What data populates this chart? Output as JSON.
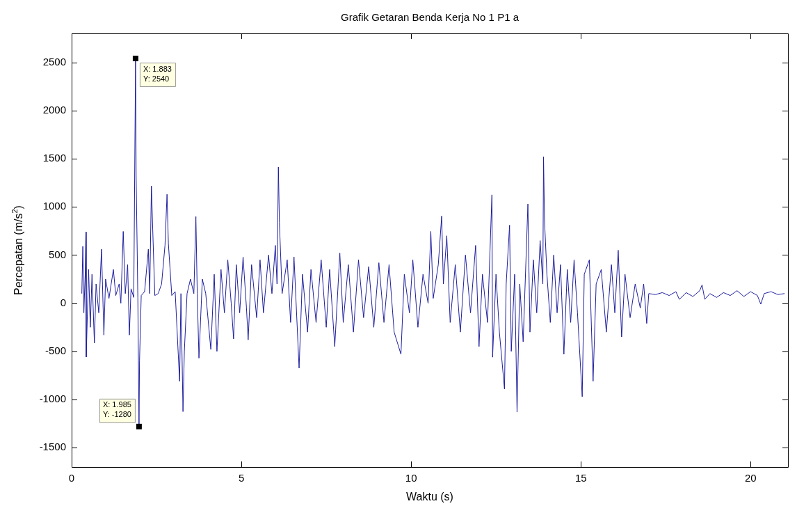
{
  "chart_data": {
    "type": "line",
    "title": "Grafik Getaran Benda Kerja No 1 P1 a",
    "xlabel": "Waktu (s)",
    "ylabel": "Percepatan (m/s$^{2}$)",
    "xlim": [
      0,
      21.1
    ],
    "xticks": [
      0,
      5,
      10,
      15,
      20
    ],
    "ylim": [
      -1700,
      2800
    ],
    "yticks": [
      -1500,
      -1000,
      -500,
      0,
      500,
      1000,
      1500,
      2000,
      2500
    ],
    "grid": false,
    "legend": false,
    "marker": "none",
    "line_style": "solid",
    "annotations": [
      {
        "text": "X: 1.883\nY: 2540",
        "x": 1.883,
        "y": 2540
      },
      {
        "text": "X: 1.985\nY: -1280",
        "x": 1.985,
        "y": -1280
      }
    ],
    "series": [
      {
        "color": "#1f1fa0",
        "x": [
          0.3,
          0.33,
          0.36,
          0.4,
          0.42,
          0.43,
          0.5,
          0.55,
          0.6,
          0.67,
          0.72,
          0.8,
          0.88,
          0.95,
          1.0,
          1.1,
          1.23,
          1.3,
          1.4,
          1.45,
          1.52,
          1.58,
          1.65,
          1.7,
          1.75,
          1.83,
          1.883,
          1.9,
          1.95,
          1.985,
          2.0,
          2.05,
          2.15,
          2.26,
          2.3,
          2.35,
          2.4,
          2.45,
          2.55,
          2.65,
          2.75,
          2.81,
          2.85,
          2.95,
          3.05,
          3.18,
          3.22,
          3.28,
          3.32,
          3.4,
          3.5,
          3.6,
          3.66,
          3.7,
          3.75,
          3.85,
          3.95,
          4.1,
          4.2,
          4.28,
          4.4,
          4.5,
          4.6,
          4.7,
          4.77,
          4.85,
          4.95,
          5.05,
          5.15,
          5.2,
          5.3,
          5.45,
          5.55,
          5.65,
          5.8,
          5.9,
          6.0,
          6.05,
          6.09,
          6.12,
          6.2,
          6.35,
          6.45,
          6.55,
          6.7,
          6.8,
          6.95,
          7.05,
          7.2,
          7.35,
          7.5,
          7.6,
          7.75,
          7.9,
          8.0,
          8.15,
          8.3,
          8.45,
          8.6,
          8.75,
          8.9,
          9.05,
          9.2,
          9.35,
          9.5,
          9.7,
          9.8,
          9.95,
          10.05,
          10.2,
          10.35,
          10.5,
          10.58,
          10.65,
          10.8,
          10.9,
          10.95,
          11.05,
          11.15,
          11.3,
          11.45,
          11.6,
          11.75,
          11.9,
          12.0,
          12.1,
          12.25,
          12.38,
          12.4,
          12.5,
          12.6,
          12.75,
          12.8,
          12.9,
          12.95,
          13.05,
          13.12,
          13.2,
          13.3,
          13.44,
          13.5,
          13.6,
          13.7,
          13.8,
          13.88,
          13.9,
          13.93,
          14.0,
          14.1,
          14.2,
          14.3,
          14.4,
          14.5,
          14.6,
          14.7,
          14.8,
          14.9,
          15.04,
          15.1,
          15.25,
          15.36,
          15.45,
          15.6,
          15.75,
          15.9,
          16.0,
          16.1,
          16.2,
          16.3,
          16.45,
          16.6,
          16.75,
          16.85,
          16.94,
          17.0,
          17.2,
          17.4,
          17.6,
          17.8,
          17.9,
          18.1,
          18.3,
          18.5,
          18.57,
          18.65,
          18.8,
          19.0,
          19.2,
          19.4,
          19.6,
          19.8,
          20.0,
          20.2,
          20.3,
          20.4,
          20.6,
          20.8,
          21.0
        ],
        "values": [
          100,
          590,
          -100,
          300,
          740,
          -558,
          350,
          -250,
          300,
          -413,
          200,
          -100,
          560,
          -330,
          250,
          50,
          350,
          80,
          200,
          0,
          745,
          100,
          400,
          -330,
          150,
          60,
          2540,
          1326,
          60,
          -1280,
          -600,
          80,
          120,
          560,
          100,
          1217,
          640,
          80,
          100,
          200,
          600,
          1130,
          620,
          80,
          120,
          -810,
          100,
          -1125,
          -500,
          100,
          250,
          100,
          900,
          100,
          -570,
          250,
          100,
          -480,
          300,
          -500,
          350,
          -100,
          450,
          0,
          -370,
          400,
          -100,
          480,
          -50,
          -380,
          400,
          -150,
          450,
          -100,
          500,
          100,
          600,
          200,
          1413,
          840,
          100,
          450,
          -200,
          480,
          -674,
          300,
          -300,
          350,
          -200,
          450,
          -250,
          350,
          -450,
          520,
          -200,
          400,
          -300,
          450,
          -150,
          380,
          -250,
          420,
          -200,
          400,
          -300,
          -530,
          300,
          -100,
          450,
          -250,
          300,
          0,
          745,
          50,
          400,
          905,
          200,
          700,
          -200,
          400,
          -300,
          500,
          -100,
          600,
          -450,
          300,
          -200,
          1125,
          -560,
          300,
          -300,
          -890,
          200,
          810,
          -500,
          300,
          -1130,
          200,
          -400,
          1030,
          -300,
          450,
          -100,
          650,
          200,
          1520,
          850,
          300,
          -200,
          500,
          -100,
          400,
          -530,
          350,
          -200,
          450,
          -100,
          -970,
          300,
          450,
          -810,
          200,
          350,
          -300,
          400,
          -100,
          550,
          -350,
          300,
          -150,
          200,
          -50,
          200,
          -210,
          100,
          90,
          110,
          80,
          120,
          40,
          110,
          70,
          130,
          190,
          40,
          100,
          60,
          110,
          80,
          130,
          70,
          120,
          80,
          -10,
          100,
          120,
          90,
          100
        ]
      }
    ]
  }
}
